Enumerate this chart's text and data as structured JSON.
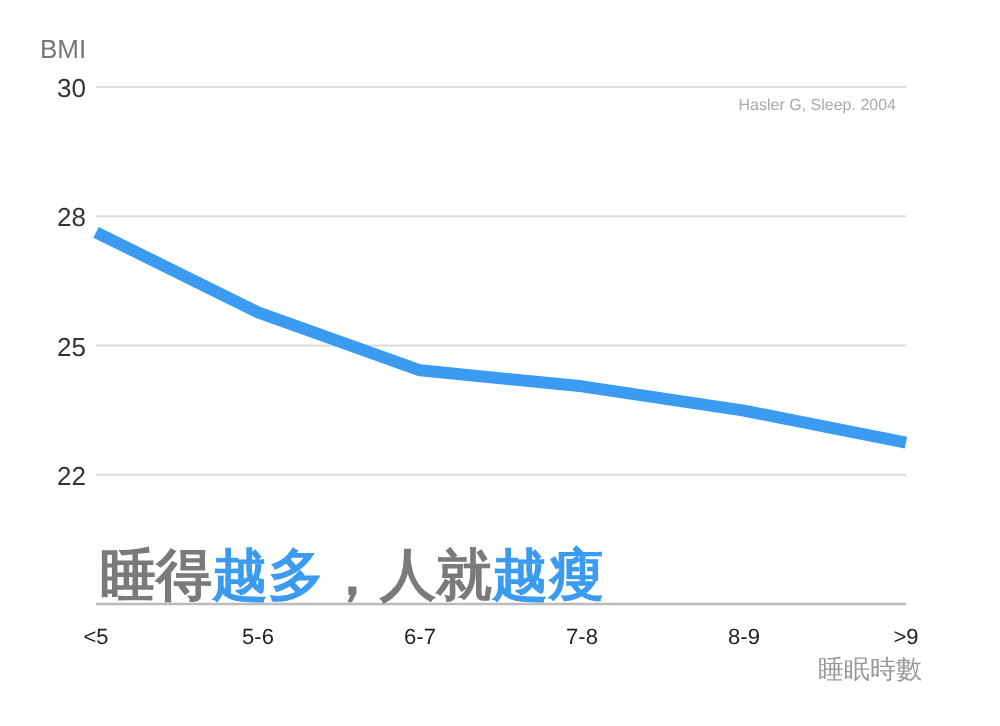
{
  "chart_data": {
    "type": "line",
    "ylabel": "BMI",
    "xlabel": "睡眠時數",
    "categories": [
      "<5",
      "5-6",
      "6-7",
      "7-8",
      "8-9",
      ">9"
    ],
    "series": [
      {
        "color": "#3a9bf0",
        "values": [
          27.19,
          25.64,
          24.52,
          24.21,
          23.74,
          23.12
        ]
      }
    ],
    "ylim": [
      20,
      30
    ],
    "yticks": [
      {
        "value": 22.5,
        "label": "22"
      },
      25,
      {
        "value": 27.5,
        "label": "28"
      },
      30
    ],
    "grid": "y",
    "marker": "none",
    "line_style": "solid",
    "annotations": [
      "Hasler G, Sleep. 2004",
      "睡得越多，人就越瘦"
    ]
  }
}
